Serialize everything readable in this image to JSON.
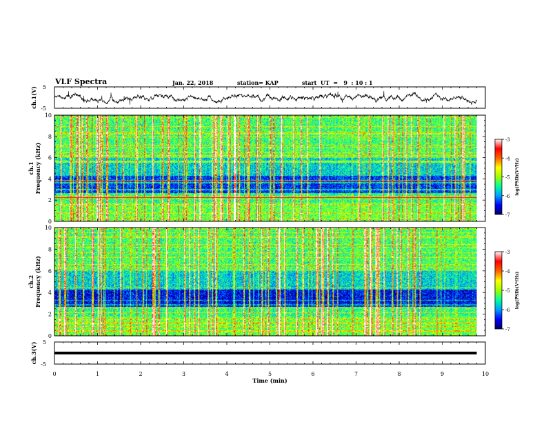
{
  "header": {
    "title": "VLF Spectra",
    "date": "Jan. 22, 2018",
    "station": "station= KAP",
    "start": "start  UT  =   9  : 10 : 1"
  },
  "chart_data": [
    {
      "type": "line",
      "panel": "ch.1 waveform",
      "ylabel": "ch.1(V)",
      "ylim": [
        -5,
        5
      ],
      "yticks": [
        "5",
        "-5"
      ],
      "xlim": [
        0,
        10
      ],
      "series_color": "#000000"
    },
    {
      "type": "heatmap",
      "panel": "ch.1 spectrogram",
      "ylabel": "ch.1 Frequency (kHz)",
      "ylabel_lines": [
        "ch.1",
        "Frequency (kHz)"
      ],
      "ylim": [
        0,
        10
      ],
      "yticks": [
        "0",
        "2",
        "4",
        "6",
        "8",
        "10"
      ],
      "xlim": [
        0,
        9.8
      ],
      "colorbar": {
        "label": "log(PSD)(V²/Hz)",
        "range": [
          -7,
          -3
        ],
        "ticks": [
          "-3",
          "-4",
          "-5",
          "-6",
          "-7"
        ],
        "colormap": [
          "#000060",
          "#0000ff",
          "#00a0ff",
          "#00ffa0",
          "#a0ff00",
          "#ffff00",
          "#ff6000",
          "#ff0000",
          "#ffffff"
        ]
      }
    },
    {
      "type": "heatmap",
      "panel": "ch.2 spectrogram",
      "ylabel": "ch.2 Frequency (kHz)",
      "ylabel_lines": [
        "ch.2",
        "Frequency (kHz)"
      ],
      "ylim": [
        0,
        10
      ],
      "yticks": [
        "0",
        "2",
        "4",
        "6",
        "8",
        "10"
      ],
      "xlim": [
        0,
        9.8
      ],
      "colorbar": {
        "label": "log(PSD)(V²/Hz)",
        "range": [
          -7,
          -3
        ],
        "ticks": [
          "-3",
          "-4",
          "-5",
          "-6",
          "-7"
        ]
      }
    },
    {
      "type": "line",
      "panel": "ch.3 waveform",
      "ylabel": "ch.3(V)",
      "ylim": [
        -5,
        5
      ],
      "yticks": [
        "5",
        "-5"
      ],
      "xlim": [
        0,
        10
      ],
      "series": [
        {
          "x": [
            0,
            9.8
          ],
          "y": [
            0,
            0
          ]
        }
      ]
    }
  ],
  "xaxis": {
    "label": "Time (min)",
    "range": [
      0,
      10
    ],
    "ticks": [
      "0",
      "1",
      "2",
      "3",
      "4",
      "5",
      "6",
      "7",
      "8",
      "9",
      "10"
    ]
  }
}
